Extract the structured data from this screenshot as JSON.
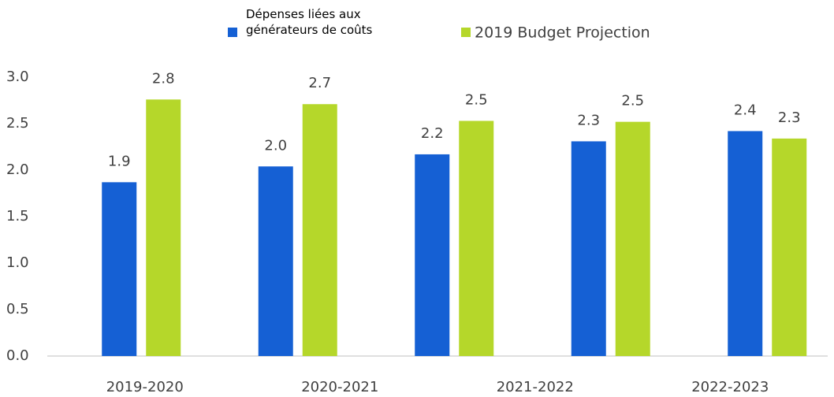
{
  "chart_data": {
    "type": "bar",
    "categories": [
      "2019-2020",
      "2020-2021",
      "2021-2022",
      "2022-2023",
      null
    ],
    "series": [
      {
        "name": "Dépenses liées aux générateurs de coûts",
        "color": "#1560d4",
        "values": [
          1.87,
          2.04,
          2.17,
          2.31,
          2.42
        ],
        "value_labels": [
          "1.9",
          "2.0",
          "2.2",
          "2.3",
          "2.4"
        ]
      },
      {
        "name": "2019 Budget Projection",
        "color": "#b5d72a",
        "values": [
          2.76,
          2.71,
          2.53,
          2.52,
          2.34
        ],
        "value_labels": [
          "2.8",
          "2.7",
          "2.5",
          "2.5",
          "2.3"
        ]
      }
    ],
    "ylim": [
      0,
      3
    ],
    "yticks": [
      {
        "value": 0,
        "label": "0.0"
      },
      {
        "value": 0.5,
        "label": "0.5"
      },
      {
        "value": 1,
        "label": "1.0"
      },
      {
        "value": 1.5,
        "label": "1.5"
      },
      {
        "value": 2,
        "label": "2.0"
      },
      {
        "value": 2.5,
        "label": "2.5"
      },
      {
        "value": 3,
        "label": "3.0"
      }
    ],
    "grid": false
  }
}
